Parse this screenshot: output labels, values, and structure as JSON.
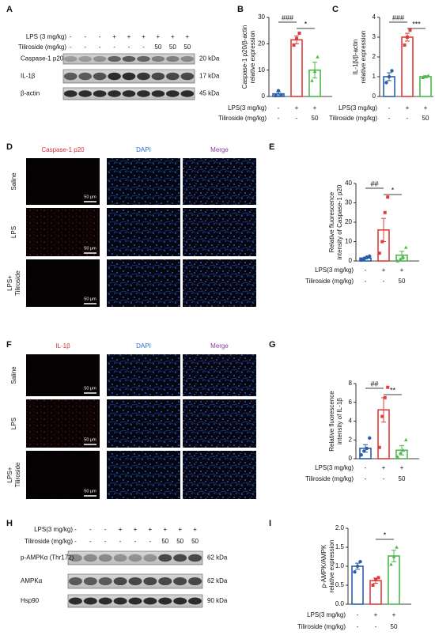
{
  "panel_labels": [
    "A",
    "B",
    "C",
    "D",
    "E",
    "F",
    "G",
    "H",
    "I"
  ],
  "blot_a": {
    "rows": [
      {
        "name": "LPS (3 mg/kg)",
        "signs": [
          "-",
          "-",
          "-",
          "+",
          "+",
          "+",
          "+",
          "+",
          "+"
        ]
      },
      {
        "name": "Tiliroside (mg/kg)",
        "signs": [
          "-",
          "-",
          "-",
          "-",
          "-",
          "-",
          "50",
          "50",
          "50"
        ]
      }
    ],
    "bands": [
      {
        "name": "Caspase-1 p20",
        "kda": "20 kDa"
      },
      {
        "name": "IL-1β",
        "kda": "17 kDa"
      },
      {
        "name": "β-actin",
        "kda": "45 kDa"
      }
    ]
  },
  "blot_h": {
    "rows": [
      {
        "name": "LPS(3 mg/kg)",
        "signs": [
          "-",
          "-",
          "-",
          "+",
          "+",
          "+",
          "+",
          "+",
          "+"
        ]
      },
      {
        "name": "Tiliroside (mg/kg)",
        "signs": [
          "-",
          "-",
          "-",
          "-",
          "-",
          "-",
          "50",
          "50",
          "50"
        ]
      }
    ],
    "bands": [
      {
        "name": "p-AMPKα (Thr172)",
        "kda": "62 kDa"
      },
      {
        "name": "AMPKα",
        "kda": "62 kDa"
      },
      {
        "name": "Hsp90",
        "kda": "90 kDa"
      }
    ]
  },
  "if_d": {
    "columns": [
      "Caspase-1 p20",
      "DAPI",
      "Merge"
    ],
    "rows": [
      [
        "Saline"
      ],
      [
        "LPS"
      ],
      [
        "LPS+",
        "Tiliroside"
      ]
    ],
    "scale_bar": "50 μm"
  },
  "if_f": {
    "columns": [
      "IL-1β",
      "DAPI",
      "Merge"
    ],
    "rows": [
      [
        "Saline"
      ],
      [
        "LPS"
      ],
      [
        "LPS+",
        "Tiliroside"
      ]
    ],
    "scale_bar": "50 μm"
  },
  "chart_data": [
    {
      "type": "bar",
      "ylabel": [
        "Caspase-1 p20/β-actin",
        "relative expression"
      ],
      "ylim": [
        0,
        30
      ],
      "yticks": [
        0,
        10,
        20,
        30
      ],
      "values": [
        1,
        21.5,
        10
      ],
      "errors": [
        0.8,
        1.5,
        3
      ],
      "points": [
        [
          0.3,
          2.2,
          0.6
        ],
        [
          19.5,
          22,
          24
        ],
        [
          6,
          9.5,
          15
        ]
      ],
      "colors": [
        "#2b5faa",
        "#e23b3b",
        "#4cb84c"
      ],
      "annotations": [
        "###",
        "*"
      ],
      "conditions": [
        {
          "name": "LPS(3 mg/kg)",
          "values": [
            "-",
            "+",
            "+"
          ]
        },
        {
          "name": "Tiliroside (mg/kg)",
          "values": [
            "-",
            "-",
            "50"
          ]
        }
      ]
    },
    {
      "type": "bar",
      "ylabel": [
        "IL-1β/β-actin",
        "relative expression"
      ],
      "ylim": [
        0,
        4
      ],
      "yticks": [
        0,
        1,
        2,
        3,
        4
      ],
      "values": [
        1.0,
        3.0,
        1.0
      ],
      "errors": [
        0.2,
        0.2,
        0.05
      ],
      "points": [
        [
          0.7,
          1.0,
          1.3
        ],
        [
          2.6,
          3.0,
          3.35
        ],
        [
          0.95,
          1.0,
          1.05
        ]
      ],
      "colors": [
        "#2b5faa",
        "#e23b3b",
        "#4cb84c"
      ],
      "annotations": [
        "###",
        "***"
      ],
      "conditions": [
        {
          "name": "LPS(3 mg/kg)",
          "values": [
            "-",
            "+",
            "+"
          ]
        },
        {
          "name": "Tiliroside (mg/kg)",
          "values": [
            "-",
            "-",
            "50"
          ]
        }
      ]
    },
    {
      "type": "bar",
      "ylabel": [
        "Relative fluorescence",
        "intensity of Caspase-1 p20"
      ],
      "ylim": [
        0,
        40
      ],
      "yticks": [
        0,
        10,
        20,
        30,
        40
      ],
      "values": [
        1.5,
        16,
        3
      ],
      "errors": [
        0.5,
        6,
        2
      ],
      "points": [
        [
          0.5,
          1,
          2,
          2.5
        ],
        [
          4,
          10,
          25,
          33
        ],
        [
          0,
          1,
          2,
          7
        ]
      ],
      "colors": [
        "#2b5faa",
        "#e23b3b",
        "#4cb84c"
      ],
      "annotations": [
        "##",
        "*"
      ],
      "conditions": [
        {
          "name": "LPS(3 mg/kg)",
          "values": [
            "-",
            "+",
            "+"
          ]
        },
        {
          "name": "Tiliroside (mg/kg)",
          "values": [
            "-",
            "-",
            "50"
          ]
        }
      ]
    },
    {
      "type": "bar",
      "ylabel": [
        "Relative fluorescence",
        "intensity of IL-1β"
      ],
      "ylim": [
        0,
        8
      ],
      "yticks": [
        0,
        2,
        4,
        6,
        8
      ],
      "values": [
        1.1,
        5.2,
        0.9
      ],
      "errors": [
        0.4,
        1.3,
        0.5
      ],
      "points": [
        [
          0.4,
          0.8,
          1.1,
          2.2
        ],
        [
          1.2,
          4.5,
          6.5,
          7.6
        ],
        [
          0.2,
          0.6,
          0.9,
          2.0
        ]
      ],
      "colors": [
        "#2b5faa",
        "#e23b3b",
        "#4cb84c"
      ],
      "annotations": [
        "##",
        "**"
      ],
      "conditions": [
        {
          "name": "LPS(3 mg/kg)",
          "values": [
            "-",
            "+",
            "+"
          ]
        },
        {
          "name": "Tiliroside (mg/kg)",
          "values": [
            "-",
            "-",
            "50"
          ]
        }
      ]
    },
    {
      "type": "bar",
      "ylabel": [
        "p-AMPK/AMPK",
        "relative expression"
      ],
      "ylim": [
        0,
        2
      ],
      "yticks": [
        {
          "value": 0,
          "label": "0.0"
        },
        {
          "value": 0.5,
          "label": "0.5"
        },
        {
          "value": 1,
          "label": "1.0"
        },
        {
          "value": 1.5,
          "label": "1.5"
        },
        {
          "value": 2,
          "label": "2.0"
        }
      ],
      "values": [
        1.0,
        0.62,
        1.27
      ],
      "errors": [
        0.08,
        0.07,
        0.15
      ],
      "points": [
        [
          0.85,
          1.0,
          1.12
        ],
        [
          0.5,
          0.65,
          0.7
        ],
        [
          1.05,
          1.25,
          1.5
        ]
      ],
      "colors": [
        "#2b5faa",
        "#e23b3b",
        "#4cb84c"
      ],
      "annotations": [
        "*"
      ],
      "conditions": [
        {
          "name": "LPS(3 mg/kg)",
          "values": [
            "-",
            "+",
            "+"
          ]
        },
        {
          "name": "Tiliroside (mg/kg)",
          "values": [
            "-",
            "-",
            "50"
          ]
        }
      ]
    }
  ]
}
